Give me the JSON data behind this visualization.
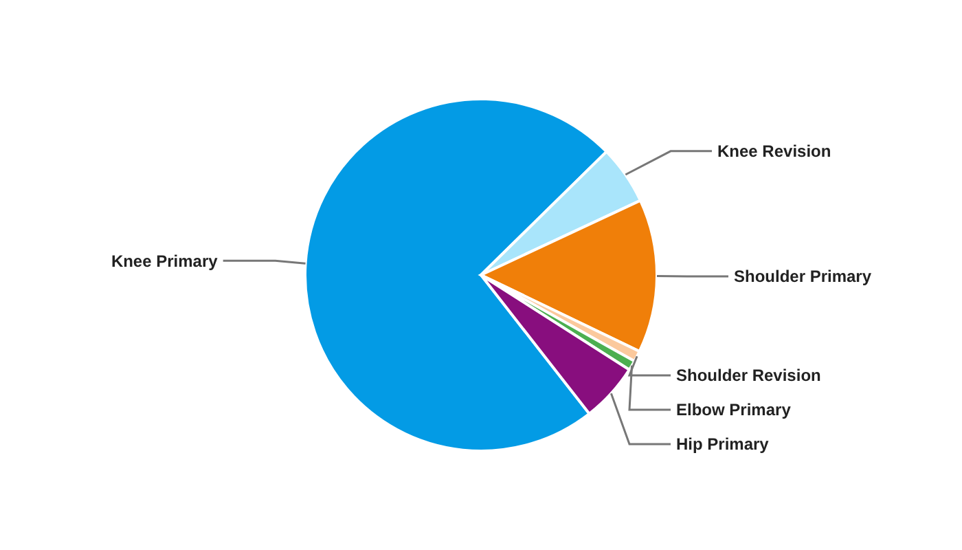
{
  "chart_data": {
    "type": "pie",
    "categories": [
      "Knee Primary",
      "Knee Revision",
      "Shoulder Primary",
      "Shoulder Revision",
      "Elbow Primary",
      "Hip Primary"
    ],
    "values": [
      73.2,
      5.4,
      14.1,
      1.0,
      0.9,
      5.4
    ],
    "colors": [
      "#039be5",
      "#a9e5fb",
      "#f07f09",
      "#fbc99d",
      "#4caf50",
      "#880e7e"
    ]
  }
}
